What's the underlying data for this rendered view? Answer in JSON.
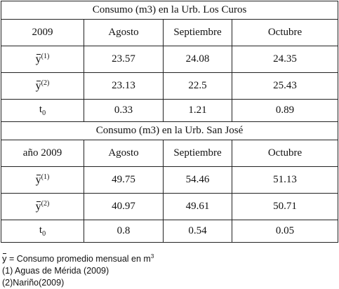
{
  "tables": [
    {
      "title": "Consumo (m3) en la Urb. Los Curos",
      "year_label": "2009",
      "months": [
        "Agosto",
        "Septiembre",
        "Octubre"
      ],
      "rows": [
        {
          "symbol": "y",
          "sup": "(1)",
          "values": [
            "23.57",
            "24.08",
            "24.35"
          ]
        },
        {
          "symbol": "y",
          "sup": "(2)",
          "values": [
            "23.13",
            "22.5",
            "25.43"
          ]
        },
        {
          "symbol": "t",
          "sub": "0",
          "values": [
            "0.33",
            "1.21",
            "0.89"
          ]
        }
      ]
    },
    {
      "title": "Consumo (m3) en la Urb. San José",
      "year_label": "año 2009",
      "months": [
        "Agosto",
        "Septiembre",
        "Octubre"
      ],
      "rows": [
        {
          "symbol": "y",
          "sup": "(1)",
          "values": [
            "49.75",
            "54.46",
            "51.13"
          ]
        },
        {
          "symbol": "y",
          "sup": "(2)",
          "values": [
            "40.97",
            "49.61",
            "50.71"
          ]
        },
        {
          "symbol": "t",
          "sub": "0",
          "values": [
            "0.8",
            "0.54",
            "0.05"
          ]
        }
      ]
    }
  ],
  "notes": {
    "symbol": "y",
    "definition": " = Consumo promedio mensual en m",
    "unit_sup": "3",
    "source1": "(1) Aguas de Mérida (2009)",
    "source2": "(2)Nariño(2009)"
  }
}
